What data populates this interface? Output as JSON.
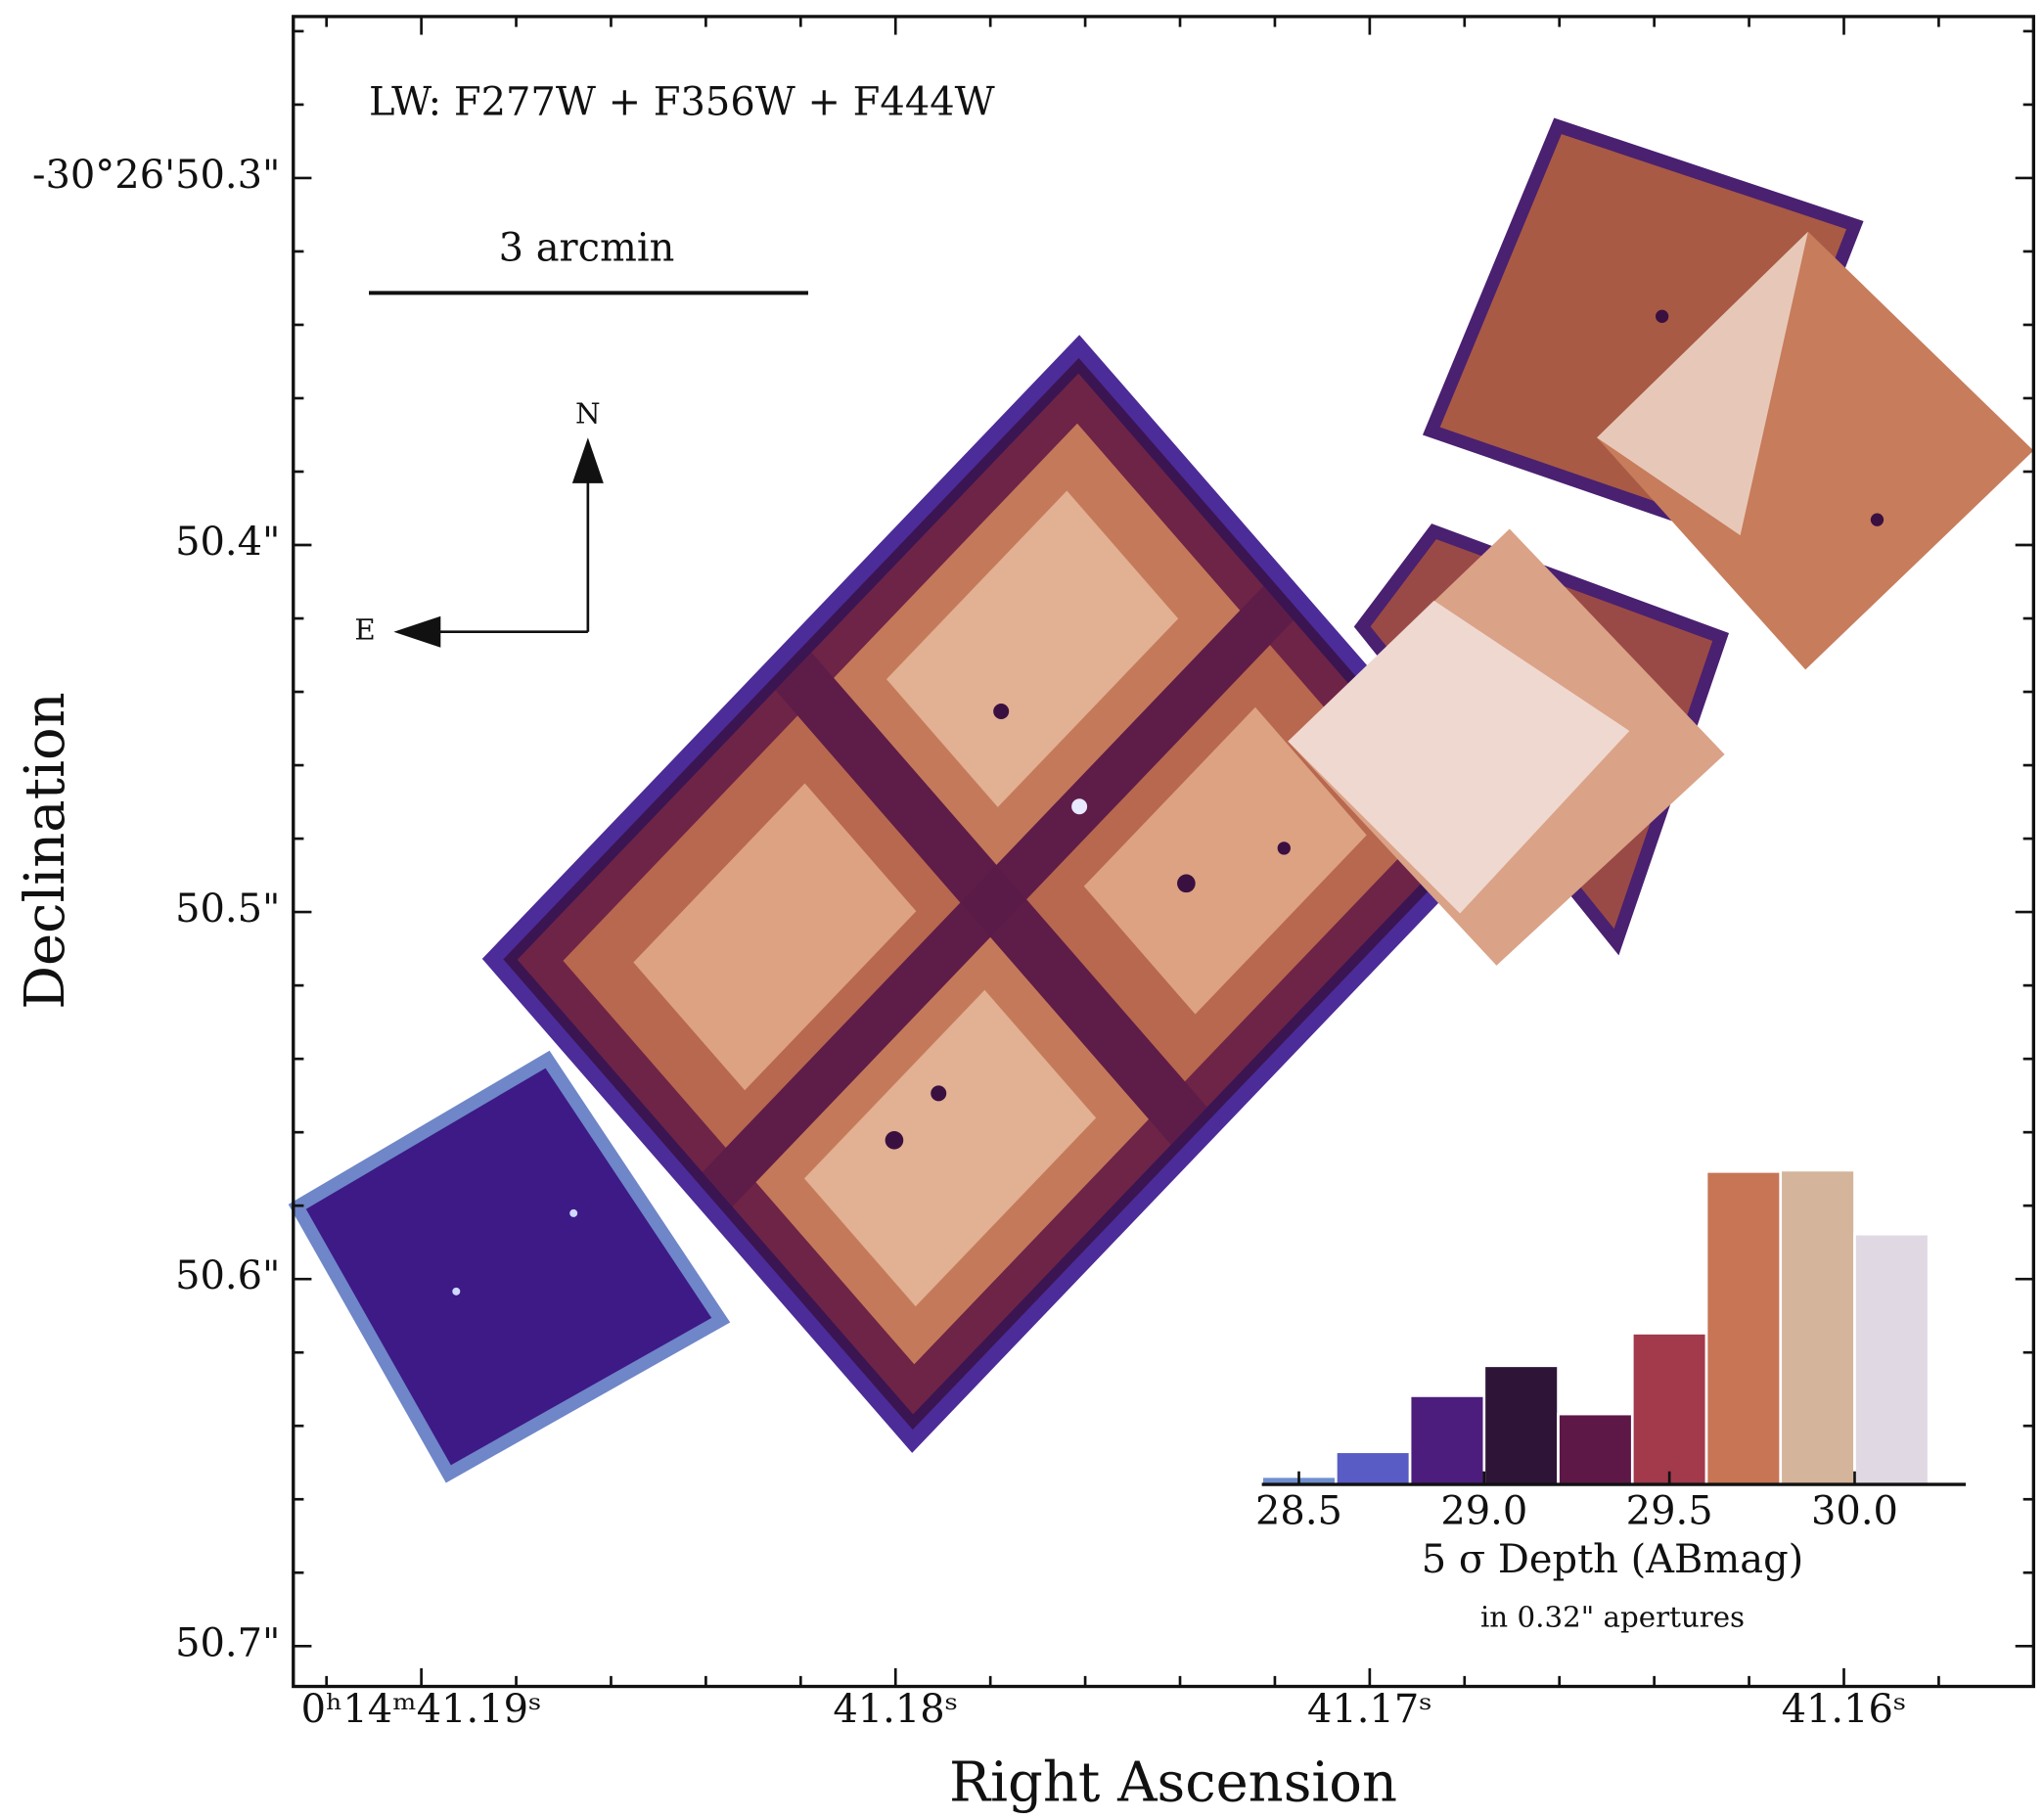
{
  "chart_data": [
    {
      "type": "image",
      "title": "LW: F277W + F356W + F444W",
      "scale_bar_label": "3 arcmin",
      "compass": {
        "north": "N",
        "east": "E"
      },
      "xlabel": "Right Ascension",
      "ylabel": "Declination",
      "xlim": [
        41.1927,
        41.156
      ],
      "ylim": [
        50.711,
        50.256
      ],
      "xticks": [
        {
          "value": 41.19,
          "label": "0ʰ14ᵐ41.19ˢ"
        },
        {
          "value": 41.18,
          "label": "41.18ˢ"
        },
        {
          "value": 41.17,
          "label": "41.17ˢ"
        },
        {
          "value": 41.16,
          "label": "41.16ˢ"
        }
      ],
      "xminorticks": [
        41.192,
        41.188,
        41.186,
        41.184,
        41.182,
        41.178,
        41.176,
        41.174,
        41.172,
        41.168,
        41.166,
        41.164,
        41.162,
        41.158
      ],
      "yticks": [
        {
          "value": 50.3,
          "label": "-30°26'50.3\""
        },
        {
          "value": 50.4,
          "label": "50.4\""
        },
        {
          "value": 50.5,
          "label": "50.5\""
        },
        {
          "value": 50.6,
          "label": "50.6\""
        },
        {
          "value": 50.7,
          "label": "50.7\""
        }
      ],
      "yminorticks": [
        50.26,
        50.28,
        50.32,
        50.34,
        50.36,
        50.38,
        50.42,
        50.44,
        50.46,
        50.48,
        50.52,
        50.54,
        50.56,
        50.58,
        50.62,
        50.64,
        50.66,
        50.68
      ]
    },
    {
      "type": "histogram",
      "xlabel": "5 σ Depth (ABmag)",
      "note": "in 0.32\" apertures",
      "bins": [
        28.4,
        28.6,
        28.8,
        29.0,
        29.2,
        29.4,
        29.6,
        29.8,
        30.0,
        30.2
      ],
      "values": [
        6,
        25,
        68,
        91,
        54,
        116,
        240,
        241,
        192
      ],
      "colors": [
        "#6f8fcf",
        "#5a5cc6",
        "#4c1d7c",
        "#2e1436",
        "#5e1848",
        "#a23a4c",
        "#c87555",
        "#d4b49a",
        "#e0d8e2"
      ],
      "xlim": [
        28.4,
        30.3
      ],
      "ylim": [
        0,
        250
      ],
      "xticks": [
        28.5,
        {
          "value": 29,
          "label": "29.0"
        },
        29.5,
        {
          "value": 30,
          "label": "30.0"
        }
      ]
    }
  ]
}
